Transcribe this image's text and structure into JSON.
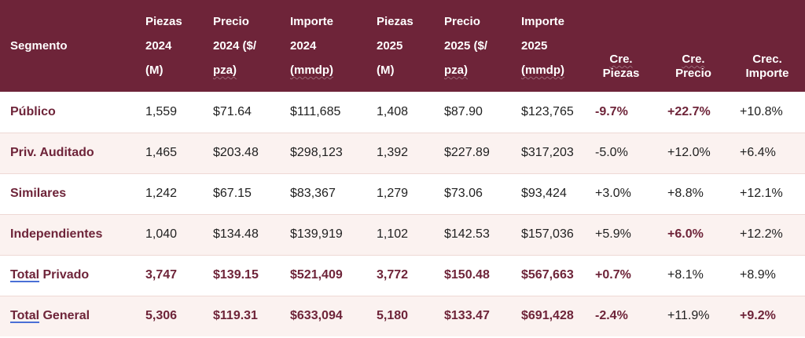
{
  "header": {
    "segmento": "Segmento",
    "piezas2024": [
      "Piezas",
      "2024",
      "(M)"
    ],
    "precio2024": [
      "Precio",
      "2024 ($/",
      "pza)"
    ],
    "importe2024": [
      "Importe",
      "2024",
      "(mmdp)"
    ],
    "piezas2025": [
      "Piezas",
      "2025",
      "(M)"
    ],
    "precio2025": [
      "Precio",
      "2025 ($/",
      "pza)"
    ],
    "importe2025": [
      "Importe",
      "2025",
      "(mmdp)"
    ],
    "crePiezas": [
      "Cre.",
      "Piezas"
    ],
    "crePrecio": [
      "Cre.",
      "Precio"
    ],
    "crecImporte": [
      "Crec.",
      "Importe"
    ]
  },
  "rows": [
    {
      "segment": "Público",
      "p24": "1,559",
      "pr24": "$71.64",
      "im24": "$111,685",
      "p25": "1,408",
      "pr25": "$87.90",
      "im25": "$123,765",
      "cp": "-9.7%",
      "cpr": "+22.7%",
      "ci": "+10.8%"
    },
    {
      "segment": "Priv. Auditado",
      "p24": "1,465",
      "pr24": "$203.48",
      "im24": "$298,123",
      "p25": "1,392",
      "pr25": "$227.89",
      "im25": "$317,203",
      "cp": "-5.0%",
      "cpr": "+12.0%",
      "ci": "+6.4%"
    },
    {
      "segment": "Similares",
      "p24": "1,242",
      "pr24": "$67.15",
      "im24": "$83,367",
      "p25": "1,279",
      "pr25": "$73.06",
      "im25": "$93,424",
      "cp": "+3.0%",
      "cpr": "+8.8%",
      "ci": "+12.1%"
    },
    {
      "segment": "Independientes",
      "p24": "1,040",
      "pr24": "$134.48",
      "im24": "$139,919",
      "p25": "1,102",
      "pr25": "$142.53",
      "im25": "$157,036",
      "cp": "+5.9%",
      "cpr": "+6.0%",
      "ci": "+12.2%"
    },
    {
      "segment_a": "Total",
      "segment_b": " Privado",
      "p24": "3,747",
      "pr24": "$139.15",
      "im24": "$521,409",
      "p25": "3,772",
      "pr25": "$150.48",
      "im25": "$567,663",
      "cp": "+0.7%",
      "cpr": "+8.1%",
      "ci": "+8.9%"
    },
    {
      "segment_a": "Total",
      "segment_b": " General",
      "p24": "5,306",
      "pr24": "$119.31",
      "im24": "$633,094",
      "p25": "5,180",
      "pr25": "$133.47",
      "im25": "$691,428",
      "cp": "-2.4%",
      "cpr": "+11.9%",
      "ci": "+9.2%"
    }
  ]
}
